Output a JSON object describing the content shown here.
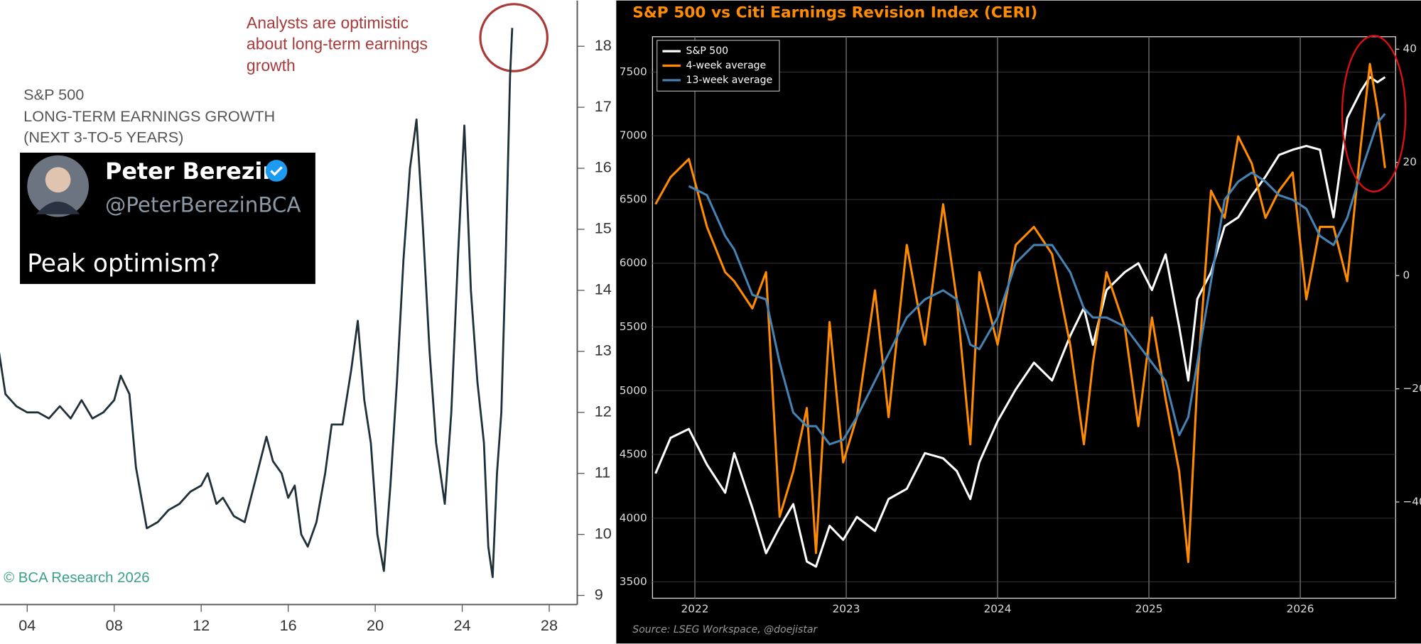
{
  "chart_data": [
    {
      "type": "line",
      "title": [
        "S&P 500",
        "LONG-TERM EARNINGS GROWTH",
        "(NEXT 3-TO-5 YEARS)"
      ],
      "annotation": [
        "Analysts are optimistic",
        "about long-term earnings",
        "growth"
      ],
      "credit": "© BCA Research 2026",
      "color": "#1f3038",
      "x": [
        2002.7,
        2003.0,
        2003.5,
        2004,
        2004.5,
        2005,
        2005.5,
        2006,
        2006.5,
        2007,
        2007.5,
        2008,
        2008.3,
        2008.7,
        2009,
        2009.3,
        2009.5,
        2010,
        2010.5,
        2011,
        2011.5,
        2012,
        2012.3,
        2012.7,
        2013,
        2013.5,
        2014,
        2014.5,
        2015,
        2015.3,
        2015.7,
        2016,
        2016.3,
        2016.6,
        2016.9,
        2017.3,
        2017.7,
        2018,
        2018.5,
        2018.9,
        2019.2,
        2019.5,
        2019.8,
        2020.1,
        2020.4,
        2020.7,
        2021.0,
        2021.3,
        2021.6,
        2021.9,
        2022.2,
        2022.5,
        2022.8,
        2023.2,
        2023.5,
        2023.8,
        2024.1,
        2024.4,
        2024.7,
        2025.0,
        2025.2,
        2025.4,
        2025.6,
        2025.8,
        2026.0,
        2026.2,
        2026.3
      ],
      "values": [
        13.0,
        12.3,
        12.1,
        12.0,
        12.0,
        11.9,
        12.1,
        11.9,
        12.2,
        11.9,
        12.0,
        12.2,
        12.6,
        12.3,
        11.1,
        10.5,
        10.1,
        10.2,
        10.4,
        10.5,
        10.7,
        10.8,
        11.0,
        10.5,
        10.6,
        10.3,
        10.2,
        10.9,
        11.6,
        11.2,
        11.0,
        10.6,
        10.8,
        10.0,
        9.8,
        10.2,
        11.0,
        11.8,
        11.8,
        12.7,
        13.5,
        12.2,
        11.5,
        10.0,
        9.4,
        10.8,
        12.5,
        14.5,
        16.0,
        16.8,
        15.0,
        13.0,
        11.5,
        10.5,
        12.0,
        14.5,
        16.7,
        14.0,
        12.5,
        11.5,
        9.8,
        9.3,
        11.0,
        12.0,
        14.5,
        17.5,
        18.3
      ],
      "xlim": [
        2002.75,
        2029.29
      ],
      "xticks": [
        {
          "value": 2004,
          "label": "04"
        },
        {
          "value": 2008,
          "label": "08"
        },
        {
          "value": 2012,
          "label": "12"
        },
        {
          "value": 2016,
          "label": "16"
        },
        {
          "value": 2020,
          "label": "20"
        },
        {
          "value": 2024,
          "label": "24"
        },
        {
          "value": 2028,
          "label": "28"
        }
      ],
      "ylim": [
        8.85,
        18.75
      ],
      "yticks": [
        9,
        10,
        11,
        12,
        13,
        14,
        15,
        16,
        17,
        18
      ]
    },
    {
      "type": "line",
      "title": "S&P 500 vs Citi Earnings Revision Index (CERI)",
      "source": "Source:  LSEG Workspace, @doejistar",
      "legend": "upper left",
      "grid": true,
      "x": [
        2021.74,
        2021.84,
        2021.96,
        2022.08,
        2022.2,
        2022.26,
        2022.38,
        2022.47,
        2022.56,
        2022.65,
        2022.74,
        2022.8,
        2022.89,
        2022.98,
        2023.07,
        2023.19,
        2023.28,
        2023.4,
        2023.52,
        2023.64,
        2023.73,
        2023.82,
        2023.88,
        2024.0,
        2024.12,
        2024.24,
        2024.36,
        2024.48,
        2024.57,
        2024.63,
        2024.72,
        2024.84,
        2024.93,
        2025.02,
        2025.11,
        2025.2,
        2025.26,
        2025.32,
        2025.41,
        2025.5,
        2025.59,
        2025.68,
        2025.77,
        2025.86,
        2025.95,
        2026.04,
        2026.13,
        2026.22,
        2026.31,
        2026.4,
        2026.46,
        2026.51,
        2026.56
      ],
      "series": [
        {
          "name": "S&P 500",
          "color": "#ffffff",
          "values": [
            4350,
            4630,
            4700,
            4420,
            4200,
            4510,
            4080,
            3725,
            3930,
            4110,
            3660,
            3620,
            3940,
            3830,
            4010,
            3900,
            4150,
            4230,
            4510,
            4470,
            4370,
            4150,
            4440,
            4760,
            5010,
            5220,
            5080,
            5430,
            5650,
            5360,
            5790,
            5930,
            6000,
            5790,
            6070,
            5500,
            5080,
            5720,
            5930,
            6290,
            6360,
            6530,
            6680,
            6850,
            6890,
            6920,
            6890,
            6360,
            7140,
            7350,
            7460,
            7420,
            7460
          ]
        },
        {
          "name": "4-week average",
          "color": "#ff8c00",
          "axis": "y2",
          "values": [
            12.6,
            17.4,
            20.6,
            8.6,
            0.6,
            -1.0,
            -5.8,
            0.6,
            -42.6,
            -34.6,
            -23.4,
            -49.0,
            -8.2,
            -33.0,
            -25.0,
            -2.6,
            -25.0,
            5.4,
            -12.2,
            12.6,
            -4.2,
            -29.8,
            0.6,
            -12.2,
            5.4,
            8.6,
            3.8,
            -12.2,
            -29.8,
            -15.4,
            0.6,
            -9.0,
            -26.6,
            -7.4,
            -21.8,
            -34.6,
            -50.6,
            -18.6,
            15.0,
            10.2,
            24.6,
            19.8,
            10.2,
            15.0,
            18.2,
            -4.2,
            8.6,
            8.6,
            -1.0,
            23.0,
            37.4,
            29.4,
            19.0
          ]
        },
        {
          "name": "13-week average",
          "color": "#4682b4",
          "axis": "y2",
          "values": [
            null,
            null,
            15.8,
            14.2,
            7.0,
            4.6,
            -3.4,
            -4.2,
            -15.4,
            -24.2,
            -26.6,
            -26.6,
            -29.8,
            -29.0,
            -25.0,
            -18.6,
            -13.8,
            -7.4,
            -4.2,
            -2.6,
            -4.2,
            -12.2,
            -13.0,
            -7.4,
            2.2,
            5.4,
            5.4,
            0.6,
            -5.8,
            -7.4,
            -7.4,
            -9.0,
            -12.2,
            -15.4,
            -18.6,
            -28.2,
            -25.0,
            -15.4,
            -1.0,
            13.4,
            16.6,
            18.2,
            16.6,
            14.2,
            13.4,
            11.8,
            7.0,
            5.4,
            10.2,
            18.2,
            23.0,
            27.0,
            28.6
          ]
        }
      ],
      "xlim": [
        2021.72,
        2026.63
      ],
      "xticks": [
        2022,
        2023,
        2024,
        2025,
        2026
      ],
      "ylim": [
        3372,
        7777
      ],
      "yticks": [
        3500,
        4000,
        4500,
        5000,
        5500,
        6000,
        6500,
        7000,
        7500
      ],
      "y2lim": [
        -57,
        42.2
      ],
      "y2ticks": [
        {
          "value": -40,
          "label": "−40"
        },
        {
          "value": -20,
          "label": "−20"
        },
        0,
        20,
        40
      ]
    }
  ],
  "tweet": {
    "name": "Peter Berezin",
    "handle": "@PeterBerezinBCA",
    "text": "Peak optimism?"
  }
}
